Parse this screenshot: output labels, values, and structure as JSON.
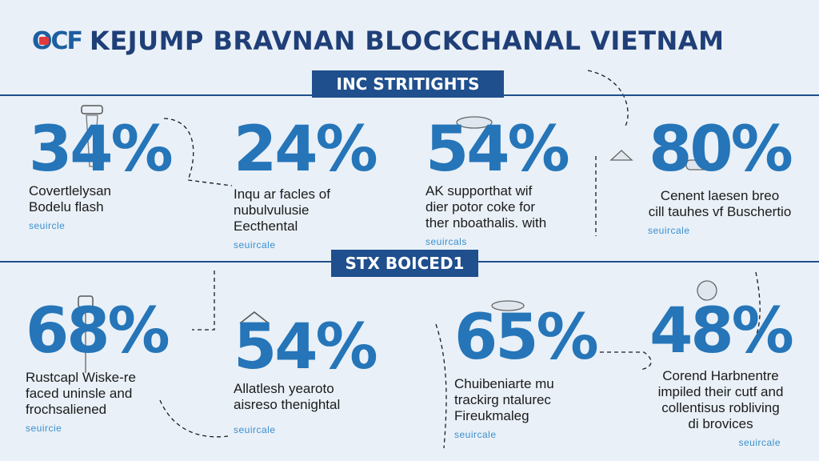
{
  "header": {
    "logo": "OCF",
    "title": "KEJUMP BRAVNAN BLOCKCHANAL VIETNAM"
  },
  "sections": [
    {
      "banner": "INC STRITIGHTS"
    },
    {
      "banner": "STX BOICED1"
    }
  ],
  "stats_top": [
    {
      "value": "34%",
      "description": "Covertlelysan\nBodelu flash",
      "source": "seuircle"
    },
    {
      "value": "24%",
      "description": "Inqu ar facles of\nnubulvulusie\nEecthental",
      "source": "seuircale"
    },
    {
      "value": "54%",
      "description": "AK supporthat wif\ndier potor coke for\nther nboathalis. with",
      "source": "seuircals"
    },
    {
      "value": "80%",
      "description": "Cenent laesen breo\ncill tauhes  vf Buschertio",
      "source": "seuircale"
    }
  ],
  "stats_bottom": [
    {
      "value": "68%",
      "description": "Rustcapl Wiske-re\nfaced uninsle and\nfrochsaliened",
      "source": "seuircie"
    },
    {
      "value": "54%",
      "description": "Allatlesh yearoto\naisreso thenightal",
      "source": "seuircale"
    },
    {
      "value": "65%",
      "description": "Chuibeniarte mu\ntrackirg ntalurec\nFireukmaleg",
      "source": "seuircale"
    },
    {
      "value": "48%",
      "description": "Corend Harbnentre\nimpiled their cutf and\ncollentisus robliving\ndi brovices",
      "source": "seuircale"
    }
  ],
  "colors": {
    "background": "#e9f0f7",
    "accent": "#2575b8",
    "banner": "#1f4f8c"
  }
}
